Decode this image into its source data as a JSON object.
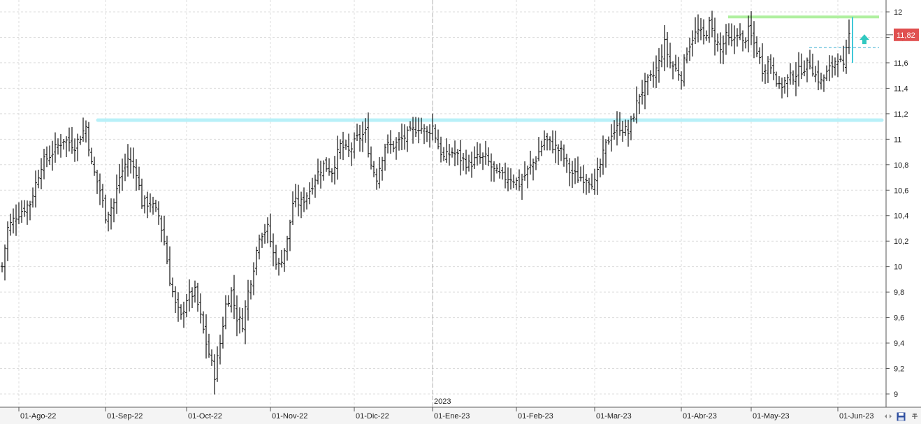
{
  "chart_data": {
    "type": "ohlc",
    "title": "",
    "xlabel": "",
    "ylabel": "",
    "ylim": [
      8.9,
      12.1
    ],
    "y_ticks": [
      "9",
      "9,2",
      "9,4",
      "9,6",
      "9,8",
      "10",
      "10,2",
      "10,4",
      "10,6",
      "10,8",
      "11",
      "11,2",
      "11,4",
      "11,6",
      "11,8",
      "12"
    ],
    "y_tick_values": [
      9,
      9.2,
      9.4,
      9.6,
      9.8,
      10,
      10.2,
      10.4,
      10.6,
      10.8,
      11,
      11.2,
      11.4,
      11.6,
      11.8,
      12
    ],
    "x_ticks": [
      {
        "label": "01-Ago-22",
        "bar": 6
      },
      {
        "label": "01-Sep-22",
        "bar": 37
      },
      {
        "label": "01-Oct-22",
        "bar": 66
      },
      {
        "label": "01-Nov-22",
        "bar": 96
      },
      {
        "label": "01-Dic-22",
        "bar": 126
      },
      {
        "label": "01-Ene-23",
        "bar": 154
      },
      {
        "label": "01-Feb-23",
        "bar": 184
      },
      {
        "label": "01-Mar-23",
        "bar": 212
      },
      {
        "label": "01-Abr-23",
        "bar": 243
      },
      {
        "label": "01-May-23",
        "bar": 268
      },
      {
        "label": "01-Jun-23",
        "bar": 299
      }
    ],
    "year_marker": {
      "label": "2023",
      "bar": 154
    },
    "last_price": {
      "value": 11.82,
      "label": "11,82",
      "color": "#e05050"
    },
    "levels": [
      {
        "name": "resistance",
        "value": 11.15,
        "color": "#b8f0f8"
      },
      {
        "name": "top",
        "value": 11.96,
        "color": "#b0f0a0"
      },
      {
        "name": "dashed",
        "value": 11.72,
        "color": "#78c8e0"
      }
    ],
    "anchors": [
      [
        0,
        10.0
      ],
      [
        2,
        10.3
      ],
      [
        5,
        10.4
      ],
      [
        10,
        10.5
      ],
      [
        14,
        10.8
      ],
      [
        18,
        10.9
      ],
      [
        22,
        11.0
      ],
      [
        26,
        10.95
      ],
      [
        30,
        11.1
      ],
      [
        32,
        10.8
      ],
      [
        35,
        10.6
      ],
      [
        37,
        10.4
      ],
      [
        40,
        10.5
      ],
      [
        42,
        10.7
      ],
      [
        45,
        10.85
      ],
      [
        48,
        10.75
      ],
      [
        50,
        10.5
      ],
      [
        53,
        10.5
      ],
      [
        56,
        10.4
      ],
      [
        58,
        10.2
      ],
      [
        60,
        9.9
      ],
      [
        62,
        9.7
      ],
      [
        64,
        9.6
      ],
      [
        66,
        9.75
      ],
      [
        69,
        9.8
      ],
      [
        71,
        9.6
      ],
      [
        73,
        9.4
      ],
      [
        76,
        9.15
      ],
      [
        78,
        9.4
      ],
      [
        80,
        9.7
      ],
      [
        82,
        9.8
      ],
      [
        84,
        9.6
      ],
      [
        86,
        9.55
      ],
      [
        88,
        9.8
      ],
      [
        90,
        10.0
      ],
      [
        92,
        10.25
      ],
      [
        95,
        10.3
      ],
      [
        97,
        10.1
      ],
      [
        99,
        10.0
      ],
      [
        102,
        10.2
      ],
      [
        104,
        10.5
      ],
      [
        107,
        10.5
      ],
      [
        110,
        10.6
      ],
      [
        112,
        10.7
      ],
      [
        115,
        10.8
      ],
      [
        118,
        10.75
      ],
      [
        121,
        10.95
      ],
      [
        124,
        10.9
      ],
      [
        127,
        11.0
      ],
      [
        130,
        11.05
      ],
      [
        132,
        10.8
      ],
      [
        134,
        10.7
      ],
      [
        137,
        10.95
      ],
      [
        140,
        10.95
      ],
      [
        143,
        11.0
      ],
      [
        146,
        11.05
      ],
      [
        149,
        11.1
      ],
      [
        152,
        11.05
      ],
      [
        154,
        11.1
      ],
      [
        156,
        10.95
      ],
      [
        158,
        10.85
      ],
      [
        161,
        10.9
      ],
      [
        164,
        10.85
      ],
      [
        167,
        10.8
      ],
      [
        170,
        10.85
      ],
      [
        173,
        10.85
      ],
      [
        176,
        10.75
      ],
      [
        179,
        10.7
      ],
      [
        182,
        10.7
      ],
      [
        185,
        10.65
      ],
      [
        188,
        10.75
      ],
      [
        191,
        10.85
      ],
      [
        194,
        11.0
      ],
      [
        197,
        10.95
      ],
      [
        200,
        10.9
      ],
      [
        203,
        10.75
      ],
      [
        206,
        10.7
      ],
      [
        209,
        10.7
      ],
      [
        212,
        10.65
      ],
      [
        214,
        10.8
      ],
      [
        216,
        10.95
      ],
      [
        218,
        11.05
      ],
      [
        221,
        11.1
      ],
      [
        224,
        11.05
      ],
      [
        226,
        11.2
      ],
      [
        228,
        11.35
      ],
      [
        231,
        11.45
      ],
      [
        233,
        11.5
      ],
      [
        235,
        11.6
      ],
      [
        237,
        11.75
      ],
      [
        239,
        11.6
      ],
      [
        241,
        11.55
      ],
      [
        243,
        11.5
      ],
      [
        245,
        11.7
      ],
      [
        247,
        11.8
      ],
      [
        249,
        11.85
      ],
      [
        251,
        11.8
      ],
      [
        253,
        11.9
      ],
      [
        255,
        11.8
      ],
      [
        257,
        11.7
      ],
      [
        259,
        11.8
      ],
      [
        261,
        11.75
      ],
      [
        263,
        11.85
      ],
      [
        265,
        11.75
      ],
      [
        267,
        11.85
      ],
      [
        270,
        11.7
      ],
      [
        272,
        11.55
      ],
      [
        274,
        11.6
      ],
      [
        276,
        11.55
      ],
      [
        278,
        11.4
      ],
      [
        280,
        11.45
      ],
      [
        283,
        11.5
      ],
      [
        286,
        11.55
      ],
      [
        289,
        11.6
      ],
      [
        291,
        11.5
      ],
      [
        293,
        11.45
      ],
      [
        296,
        11.55
      ],
      [
        299,
        11.65
      ],
      [
        301,
        11.55
      ],
      [
        303,
        11.82
      ]
    ]
  },
  "toolbar": {
    "zoom_icon": "zoom-icon",
    "save_icon": "save-icon",
    "pin_icon": "pin-icon"
  }
}
